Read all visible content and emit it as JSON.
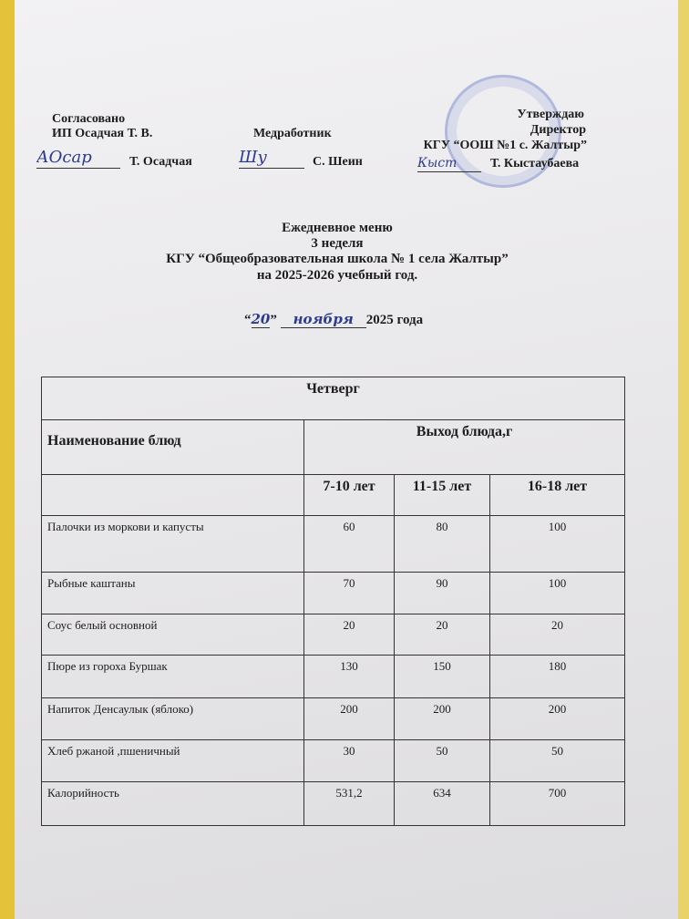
{
  "header": {
    "left": {
      "line1": "Согласовано",
      "line2": "ИП Осадчая Т. В.",
      "signature_name": "Т. Осадчая"
    },
    "middle": {
      "line1": "Медработник",
      "signature_name": "С. Шеин"
    },
    "right": {
      "line1": "Утверждаю",
      "line2": "Директор",
      "line3": "КГУ “ООШ №1 с. Жалтыр”",
      "signature_name": "Т. Кыстаубаева"
    }
  },
  "title": {
    "line1": "Ежедневное меню",
    "line2": "3 неделя",
    "line3": "КГУ “Общеобразовательная школа № 1 села Жалтыр”",
    "line4": "на 2025-2026 учебный год.",
    "date_day": "20",
    "date_month": "ноября",
    "date_year": "2025 года"
  },
  "table": {
    "day": "Четверг",
    "col_name": "Наименование блюд",
    "col_output": "Выход блюда,г",
    "ages": [
      "7-10 лет",
      "11-15 лет",
      "16-18 лет"
    ],
    "rows": [
      {
        "name": "Палочки из моркови и капусты",
        "v": [
          "60",
          "80",
          "100"
        ]
      },
      {
        "name": "Рыбные каштаны",
        "v": [
          "70",
          "90",
          "100"
        ]
      },
      {
        "name": "Соус белый основной",
        "v": [
          "20",
          "20",
          "20"
        ]
      },
      {
        "name": "Пюре из гороха Буршак",
        "v": [
          "130",
          "150",
          "180"
        ]
      },
      {
        "name": "Напиток Денсаулык (яблоко)",
        "v": [
          "200",
          "200",
          "200"
        ]
      },
      {
        "name": "Хлеб ржаной ,пшеничный",
        "v": [
          "30",
          "50",
          "50"
        ]
      },
      {
        "name": "Калорийность",
        "v": [
          "531,2",
          "634",
          "700"
        ]
      }
    ]
  }
}
